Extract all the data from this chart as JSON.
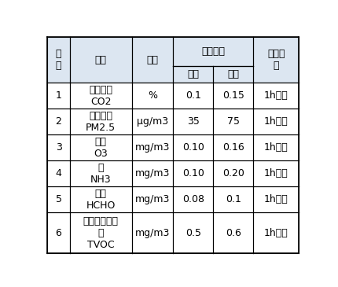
{
  "col_rel": [
    0.075,
    0.21,
    0.14,
    0.135,
    0.135,
    0.155
  ],
  "row_rel_header1": 0.13,
  "row_rel_header2": 0.075,
  "row_rel_data": [
    0.115,
    0.115,
    0.115,
    0.115,
    0.115,
    0.18
  ],
  "header1": [
    "序\n号",
    "参数",
    "单位",
    "浓度限值",
    "",
    "平均时\n间"
  ],
  "header2": [
    "",
    "",
    "",
    "一级",
    "二级",
    ""
  ],
  "rows": [
    [
      "1",
      "二氧化碳\nCO2",
      "%",
      "0.1",
      "0.15",
      "1h平均"
    ],
    [
      "2",
      "细颗粒物\nPM2.5",
      "μg/m3",
      "35",
      "75",
      "1h平均"
    ],
    [
      "3",
      "臭氧\nO3",
      "mg/m3",
      "0.10",
      "0.16",
      "1h平均"
    ],
    [
      "4",
      "氨\nNH3",
      "mg/m3",
      "0.10",
      "0.20",
      "1h平均"
    ],
    [
      "5",
      "甲醛\nHCHO",
      "mg/m3",
      "0.08",
      "0.1",
      "1h平均"
    ],
    [
      "6",
      "总挥发性有机\n物\nTVOC",
      "mg/m3",
      "0.5",
      "0.6",
      "1h平均"
    ]
  ],
  "bg_color": "#ffffff",
  "border_color": "#000000",
  "header_bg": "#dce6f1",
  "text_color": "#000000",
  "font_size": 9
}
